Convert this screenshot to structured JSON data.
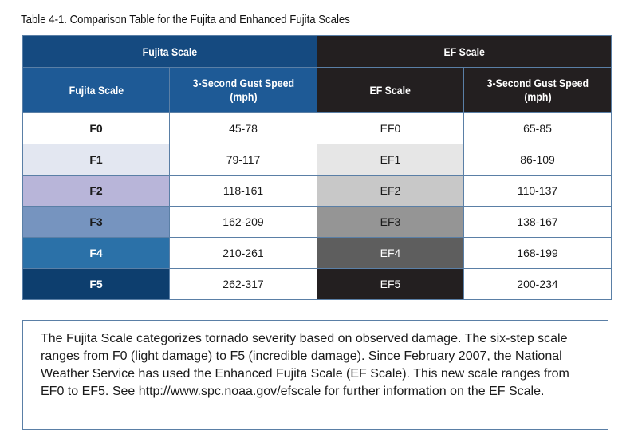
{
  "caption": "Table 4-1. Comparison Table for the Fujita and Enhanced Fujita Scales",
  "table": {
    "group_headers": {
      "fujita": "Fujita Scale",
      "ef": "EF Scale"
    },
    "column_headers": {
      "fujita_scale": "Fujita Scale",
      "fujita_speed_line1": "3-Second Gust Speed",
      "fujita_speed_line2": "(mph)",
      "ef_scale": "EF Scale",
      "ef_speed_line1": "3-Second Gust Speed",
      "ef_speed_line2": "(mph)"
    },
    "rows": [
      {
        "f": "F0",
        "f_speed": "45-78",
        "ef": "EF0",
        "ef_speed": "65-85",
        "f_bg": "#ffffff",
        "f_fg": "#1a1a1a",
        "ef_bg": "#ffffff",
        "ef_fg": "#1a1a1a"
      },
      {
        "f": "F1",
        "f_speed": "79-117",
        "ef": "EF1",
        "ef_speed": "86-109",
        "f_bg": "#e3e7f1",
        "f_fg": "#1a1a1a",
        "ef_bg": "#e6e6e6",
        "ef_fg": "#1a1a1a"
      },
      {
        "f": "F2",
        "f_speed": "118-161",
        "ef": "EF2",
        "ef_speed": "110-137",
        "f_bg": "#b8b5d9",
        "f_fg": "#1a1a1a",
        "ef_bg": "#c8c8c8",
        "ef_fg": "#1a1a1a"
      },
      {
        "f": "F3",
        "f_speed": "162-209",
        "ef": "EF3",
        "ef_speed": "138-167",
        "f_bg": "#7694bf",
        "f_fg": "#1a1a1a",
        "ef_bg": "#959595",
        "ef_fg": "#1a1a1a"
      },
      {
        "f": "F4",
        "f_speed": "210-261",
        "ef": "EF4",
        "ef_speed": "168-199",
        "f_bg": "#2b71a8",
        "f_fg": "#ffffff",
        "ef_bg": "#5e5e5e",
        "ef_fg": "#ffffff"
      },
      {
        "f": "F5",
        "f_speed": "262-317",
        "ef": "EF5",
        "ef_speed": "200-234",
        "f_bg": "#0d3e6e",
        "f_fg": "#ffffff",
        "ef_bg": "#231f20",
        "ef_fg": "#ffffff"
      }
    ]
  },
  "note": "The Fujita Scale categorizes tornado severity based on observed damage. The six-step scale ranges from F0 (light damage) to F5 (incredible damage). Since February 2007, the National Weather Service has used the Enhanced Fujita Scale (EF Scale). This new scale ranges from EF0 to EF5. See http://www.spc.noaa.gov/efscale for further information on the EF Scale."
}
